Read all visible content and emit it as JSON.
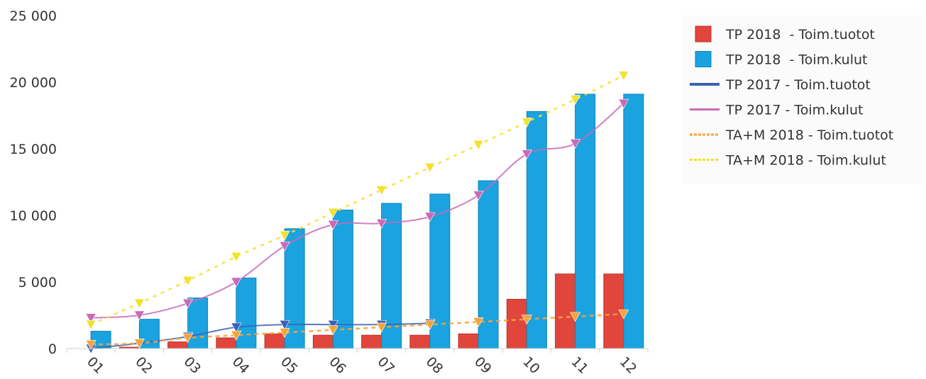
{
  "chart_data": {
    "type": "bar",
    "categories": [
      "01",
      "02",
      "03",
      "04",
      "05",
      "06",
      "07",
      "08",
      "09",
      "10",
      "11",
      "12"
    ],
    "ylim": [
      0,
      25000
    ],
    "yticks": [
      0,
      5000,
      10000,
      15000,
      20000,
      25000
    ],
    "ytick_labels": [
      "0",
      "5 000",
      "10 000",
      "15 000",
      "20 000",
      "25 000"
    ],
    "grid": false,
    "legend_position": "top-right",
    "series": [
      {
        "name": "TP 2018  - Toim.tuotot",
        "type": "bar",
        "color": "#e0463c",
        "values": [
          0,
          100,
          500,
          800,
          1100,
          1000,
          1000,
          1000,
          1100,
          3700,
          5600,
          5600
        ]
      },
      {
        "name": "TP 2018  - Toim.kulut",
        "type": "bar",
        "color": "#1aa3df",
        "values": [
          1300,
          2200,
          3800,
          5300,
          9000,
          10400,
          10900,
          11600,
          12600,
          17800,
          19100,
          19100
        ]
      },
      {
        "name": "TP 2017 - Toim.tuotot",
        "type": "line",
        "color": "#3b63b5",
        "values": [
          0,
          400,
          900,
          1600,
          1800,
          1800,
          1800,
          1900,
          null,
          null,
          null,
          null
        ]
      },
      {
        "name": "TP 2017 - Toim.kulut",
        "type": "line",
        "color": "#c86ab8",
        "values": [
          2300,
          2500,
          3400,
          5000,
          7700,
          9300,
          9400,
          9900,
          11500,
          14600,
          15400,
          18400
        ]
      },
      {
        "name": "TA+M 2018 - Toim.tuotot",
        "type": "line",
        "color": "#f5a43a",
        "values": [
          300,
          400,
          800,
          1000,
          1200,
          1400,
          1600,
          1800,
          2000,
          2200,
          2400,
          2600
        ]
      },
      {
        "name": "TA+M 2018 - Toim.kulut",
        "type": "line",
        "color": "#f2e12e",
        "values": [
          1800,
          3400,
          5100,
          6900,
          8500,
          10200,
          11900,
          13600,
          15300,
          17000,
          18700,
          20500
        ]
      }
    ]
  }
}
